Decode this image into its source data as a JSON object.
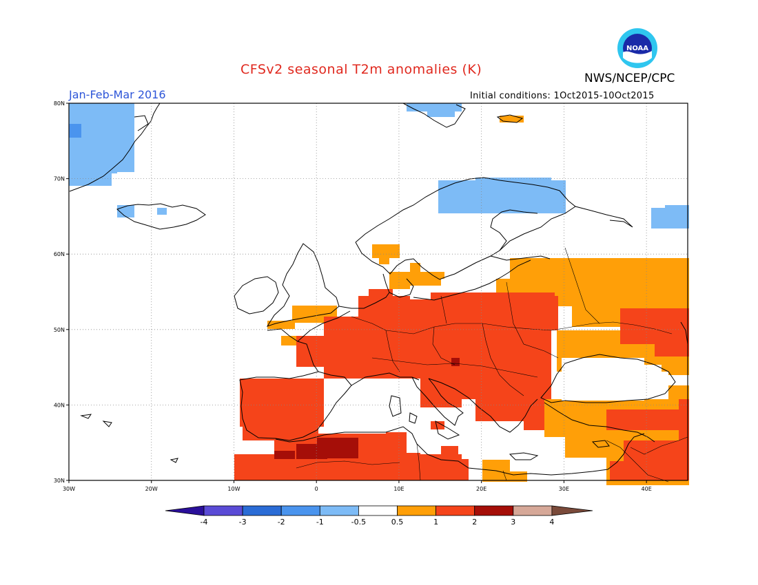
{
  "title": "CFSv2 seasonal T2m anomalies (K)",
  "season": "Jan-Feb-Mar 2016",
  "agency": "NWS/NCEP/CPC",
  "logo_text": "NOAA",
  "initial_conditions": "Initial conditions: 1Oct2015-10Oct2015",
  "colors": {
    "title": "#e0281e",
    "season": "#2d55d8",
    "land": "#ffffff",
    "anom_lt_neg4": "#2a0f9a",
    "anom_neg4_neg3": "#5a4bd6",
    "anom_neg3_neg2": "#2a6cd6",
    "anom_neg2_neg1": "#4a94ee",
    "anom_neg1_neg05": "#7dbbf6",
    "anom_neutral": "#ffffff",
    "anom_05_1": "#ff9f08",
    "anom_1_2": "#f5441a",
    "anom_2_3": "#a50e08",
    "anom_3_4": "#d6a898",
    "anom_gt_4": "#7a4a3a"
  },
  "map": {
    "lon_range": [
      -30,
      45
    ],
    "lat_range": [
      30,
      80
    ],
    "lon_ticks": [
      "30W",
      "20W",
      "10W",
      "0",
      "10E",
      "20E",
      "30E",
      "40E"
    ],
    "lat_ticks": [
      "30N",
      "40N",
      "50N",
      "60N",
      "70N",
      "80N"
    ]
  },
  "colorbar": {
    "tick_labels": [
      "-4",
      "-3",
      "-2",
      "-1",
      "-0.5",
      "0.5",
      "1",
      "2",
      "3",
      "4"
    ]
  }
}
